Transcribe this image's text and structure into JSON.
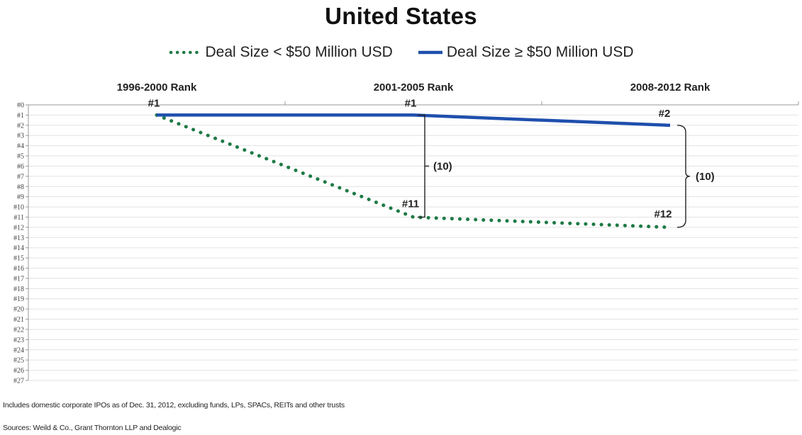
{
  "chart_data": {
    "type": "line",
    "title": "United States",
    "categories": [
      "1996-2000 Rank",
      "2001-2005 Rank",
      "2008-2012 Rank"
    ],
    "y_ticks": [
      "#0",
      "#1",
      "#2",
      "#3",
      "#4",
      "#5",
      "#6",
      "#7",
      "#8",
      "#9",
      "#10",
      "#11",
      "#12",
      "#13",
      "#14",
      "#15",
      "#16",
      "#17",
      "#18",
      "#19",
      "#20",
      "#21",
      "#22",
      "#23",
      "#24",
      "#25",
      "#26",
      "#27"
    ],
    "ylim": [
      0,
      27
    ],
    "y_inverted": true,
    "grid": true,
    "legend_position": "top-center",
    "series": [
      {
        "name": "Deal Size < $50 Million USD",
        "values": [
          1,
          11,
          12
        ],
        "labels": [
          "",
          "#11",
          "#12"
        ],
        "color": "#1e7a45",
        "style": "dotted"
      },
      {
        "name": "Deal Size ≥ $50 Million USD",
        "values": [
          1,
          1,
          2
        ],
        "labels": [
          "#1",
          "#1",
          "#2"
        ],
        "color": "#1f4fad",
        "style": "solid"
      }
    ],
    "annotations": [
      {
        "category": "2001-2005 Rank",
        "from": 1,
        "to": 11,
        "text": "(10)"
      },
      {
        "category": "2008-2012 Rank",
        "from": 2,
        "to": 12,
        "text": "(10)"
      }
    ]
  },
  "notes": {
    "scope": "Includes domestic corporate IPOs as of Dec. 31, 2012, excluding funds, LPs, SPACs, REITs and other trusts",
    "sources": "Sources: Weild & Co., Grant Thornton LLP and Dealogic"
  }
}
